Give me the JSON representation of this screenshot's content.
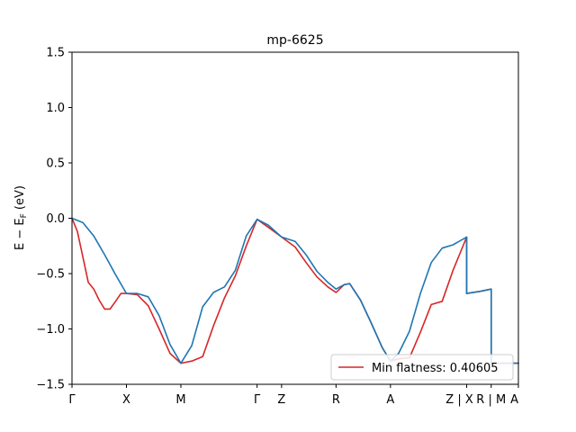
{
  "chart_data": {
    "type": "line",
    "title": "mp-6625",
    "ylabel_parts": [
      "E − E",
      "F",
      " (eV)"
    ],
    "ylim": [
      -1.5,
      1.5
    ],
    "yticks": [
      1.5,
      1.0,
      0.5,
      0.0,
      -0.5,
      -1.0,
      -1.5
    ],
    "ytick_labels": [
      "1.5",
      "1.0",
      "0.5",
      "0.0",
      "−0.5",
      "−1.0",
      "−1.5"
    ],
    "xlim": [
      0,
      8.2
    ],
    "xticks": [
      {
        "label": "Γ",
        "x": 0.0
      },
      {
        "label": "X",
        "x": 1.0
      },
      {
        "label": "M",
        "x": 2.0
      },
      {
        "label": "Γ",
        "x": 3.4
      },
      {
        "label": "Z",
        "x": 3.85
      },
      {
        "label": "R",
        "x": 4.85
      },
      {
        "label": "A",
        "x": 5.85
      },
      {
        "label": "Z | X",
        "x": 7.25
      },
      {
        "label": "R | M",
        "x": 7.7
      },
      {
        "label": "A",
        "x": 8.2
      }
    ],
    "grid": false,
    "legend_position": "lower-right",
    "series": [
      {
        "name": "Min flatness: 0.40605",
        "color": "#d62728",
        "x": [
          0.0,
          0.1,
          0.2,
          0.3,
          0.4,
          0.5,
          0.6,
          0.7,
          0.8,
          0.9,
          1.0,
          1.2,
          1.4,
          1.6,
          1.8,
          2.0,
          2.2,
          2.4,
          2.6,
          2.8,
          3.0,
          3.2,
          3.4,
          3.6,
          3.85,
          4.1,
          4.3,
          4.5,
          4.7,
          4.85,
          5.0,
          5.1,
          5.3,
          5.5,
          5.7,
          5.85,
          6.0,
          6.2,
          6.4,
          6.6,
          6.8,
          7.0,
          7.25,
          7.25,
          7.5,
          7.7,
          7.7,
          8.2
        ],
        "y": [
          0.0,
          -0.12,
          -0.35,
          -0.58,
          -0.64,
          -0.74,
          -0.82,
          -0.82,
          -0.75,
          -0.68,
          -0.68,
          -0.69,
          -0.79,
          -1.0,
          -1.22,
          -1.31,
          -1.29,
          -1.25,
          -0.97,
          -0.72,
          -0.52,
          -0.25,
          -0.01,
          -0.08,
          -0.17,
          -0.26,
          -0.4,
          -0.53,
          -0.62,
          -0.67,
          -0.6,
          -0.59,
          -0.74,
          -0.95,
          -1.17,
          -1.29,
          -1.27,
          -1.26,
          -1.03,
          -0.78,
          -0.75,
          -0.47,
          -0.17,
          -0.68,
          -0.66,
          -0.64,
          -1.31,
          -1.31
        ]
      },
      {
        "name": "",
        "color": "#1f77b4",
        "x": [
          0.0,
          0.2,
          0.4,
          0.6,
          0.8,
          1.0,
          1.2,
          1.4,
          1.6,
          1.8,
          2.0,
          2.2,
          2.4,
          2.6,
          2.8,
          3.0,
          3.2,
          3.4,
          3.6,
          3.85,
          4.1,
          4.3,
          4.5,
          4.7,
          4.85,
          5.0,
          5.1,
          5.3,
          5.5,
          5.7,
          5.85,
          6.0,
          6.2,
          6.4,
          6.6,
          6.8,
          7.0,
          7.25,
          7.25,
          7.5,
          7.7,
          7.7,
          8.2
        ],
        "y": [
          0.0,
          -0.04,
          -0.16,
          -0.33,
          -0.51,
          -0.68,
          -0.68,
          -0.71,
          -0.88,
          -1.14,
          -1.31,
          -1.15,
          -0.8,
          -0.67,
          -0.62,
          -0.47,
          -0.16,
          -0.01,
          -0.06,
          -0.17,
          -0.21,
          -0.33,
          -0.48,
          -0.58,
          -0.64,
          -0.6,
          -0.59,
          -0.74,
          -0.95,
          -1.17,
          -1.29,
          -1.22,
          -1.02,
          -0.68,
          -0.4,
          -0.27,
          -0.24,
          -0.17,
          -0.68,
          -0.66,
          -0.64,
          -1.31,
          -1.31
        ]
      }
    ]
  }
}
